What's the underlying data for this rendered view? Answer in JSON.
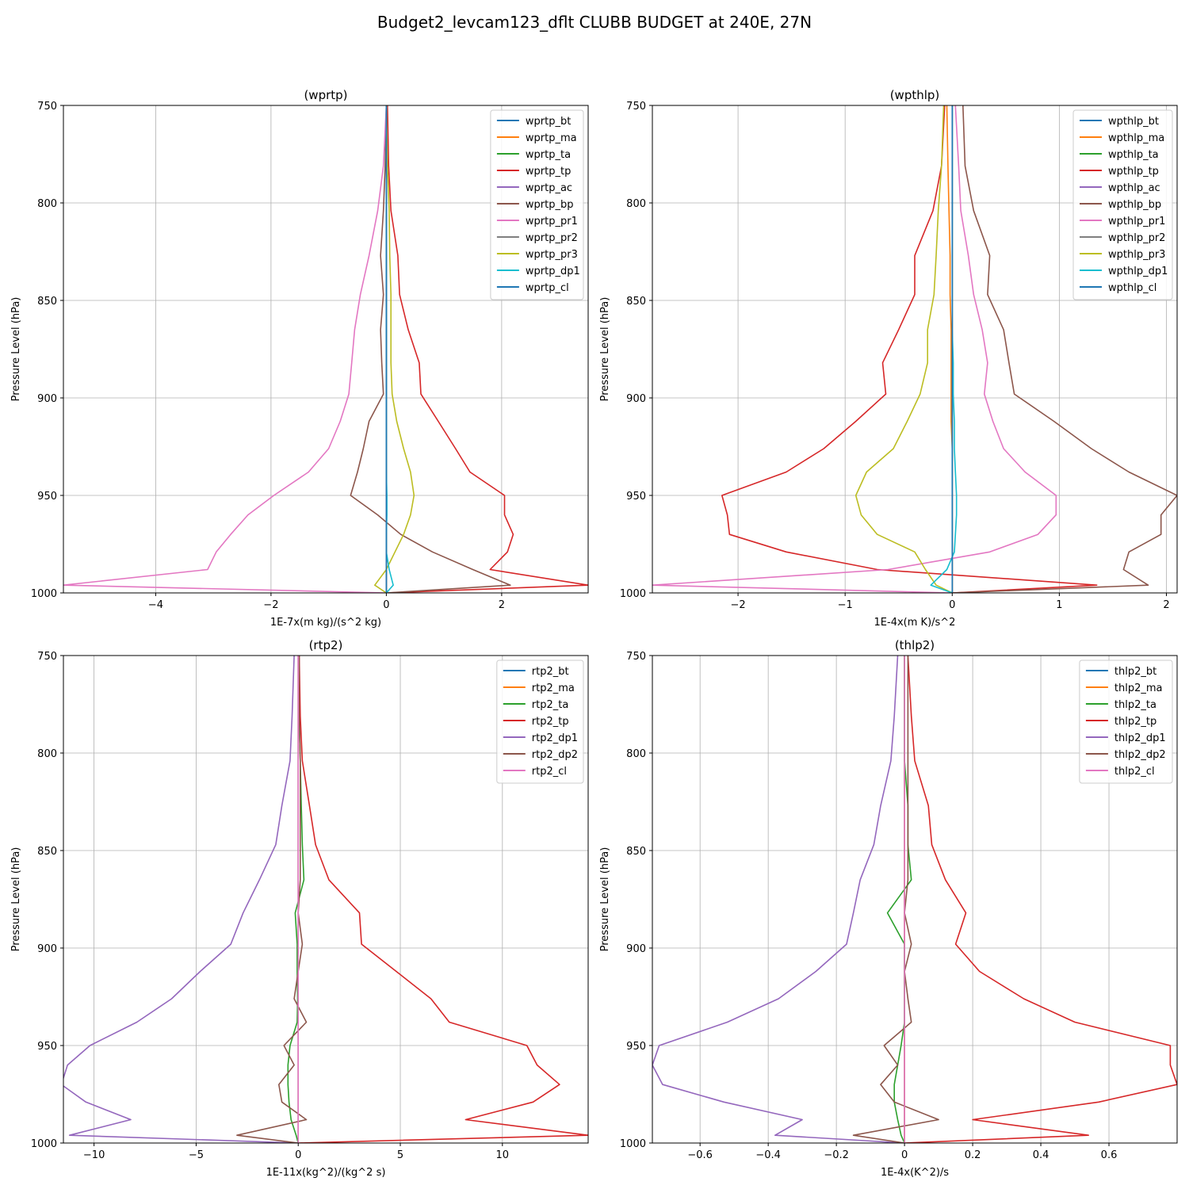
{
  "figure": {
    "title": "Budget2_levcam123_dflt CLUBB BUDGET at 240E, 27N"
  },
  "chart_data": [
    {
      "type": "line",
      "title": "(wprtp)",
      "xlabel": "1E-7x(m kg)/(s^2 kg)",
      "ylabel": "Pressure Level (hPa)",
      "xlim": [
        -5.6,
        3.5
      ],
      "ylim": [
        1000,
        750
      ],
      "xticks": [
        -4,
        -2,
        0,
        2
      ],
      "yticks": [
        750,
        800,
        850,
        900,
        950,
        1000
      ],
      "grid": true,
      "legend_position": "top-right",
      "y": [
        750,
        781,
        804,
        827,
        847,
        865,
        882,
        898,
        912,
        926,
        938,
        950,
        960,
        970,
        979,
        988,
        996,
        1000
      ],
      "series": [
        {
          "name": "wprtp_bt",
          "color": "#1f77b4",
          "values": [
            0,
            0,
            0,
            0,
            0,
            0,
            0,
            0,
            0,
            0,
            0,
            0,
            0,
            0,
            0,
            0,
            0,
            0
          ]
        },
        {
          "name": "wprtp_ma",
          "color": "#ff7f0e",
          "values": [
            0,
            0,
            0,
            0,
            0,
            0,
            0,
            0,
            0,
            0,
            0,
            0,
            0,
            0,
            0,
            0,
            0,
            0
          ]
        },
        {
          "name": "wprtp_ta",
          "color": "#2ca02c",
          "values": [
            0,
            0,
            0,
            0,
            0,
            0,
            0,
            0,
            0,
            0,
            0,
            0,
            0,
            0,
            0,
            0,
            0,
            0
          ]
        },
        {
          "name": "wprtp_tp",
          "color": "#d62728",
          "values": [
            0.02,
            0.04,
            0.08,
            0.2,
            0.23,
            0.38,
            0.57,
            0.6,
            0.9,
            1.2,
            1.45,
            2.05,
            2.05,
            2.2,
            2.1,
            1.8,
            3.5,
            0
          ]
        },
        {
          "name": "wprtp_ac",
          "color": "#9467bd",
          "values": [
            0,
            0,
            0,
            0,
            0,
            0,
            0,
            0,
            0,
            0,
            0,
            0,
            0,
            0,
            0,
            0,
            0,
            0
          ]
        },
        {
          "name": "wprtp_bp",
          "color": "#8c564b",
          "values": [
            0,
            -0.02,
            -0.05,
            -0.1,
            -0.05,
            -0.1,
            -0.08,
            -0.05,
            -0.3,
            -0.4,
            -0.5,
            -0.62,
            -0.15,
            0.25,
            0.8,
            1.5,
            2.15,
            0
          ]
        },
        {
          "name": "wprtp_pr1",
          "color": "#e377c2",
          "values": [
            0,
            -0.05,
            -0.15,
            -0.3,
            -0.45,
            -0.55,
            -0.6,
            -0.65,
            -0.8,
            -1.0,
            -1.35,
            -1.95,
            -2.4,
            -2.7,
            -2.95,
            -3.1,
            -5.6,
            0
          ]
        },
        {
          "name": "wprtp_pr2",
          "color": "#7f7f7f",
          "values": [
            0,
            0,
            0,
            0,
            0,
            0,
            0,
            0,
            0,
            0,
            0,
            0,
            0,
            0,
            0,
            0,
            0,
            0
          ]
        },
        {
          "name": "wprtp_pr3",
          "color": "#bcbd22",
          "values": [
            0,
            0.02,
            0.05,
            0.06,
            0.08,
            0.08,
            0.08,
            0.1,
            0.18,
            0.3,
            0.42,
            0.48,
            0.42,
            0.3,
            0.15,
            0,
            -0.2,
            0
          ]
        },
        {
          "name": "wprtp_dp1",
          "color": "#17becf",
          "values": [
            0,
            0,
            0,
            0,
            0,
            0,
            0,
            0,
            0,
            0,
            0,
            0.01,
            0.01,
            0,
            0,
            0.05,
            0.12,
            0
          ]
        },
        {
          "name": "wprtp_cl",
          "color": "#1f77b4",
          "values": [
            0,
            0,
            0,
            0,
            0,
            0,
            0,
            0,
            0,
            0,
            0,
            0,
            0,
            0,
            0,
            0,
            0,
            0
          ]
        }
      ]
    },
    {
      "type": "line",
      "title": "(wpthlp)",
      "xlabel": "1E-4x(m K)/s^2",
      "ylabel": "Pressure Level (hPa)",
      "xlim": [
        -2.8,
        2.1
      ],
      "ylim": [
        1000,
        750
      ],
      "xticks": [
        -2,
        -1,
        0,
        1,
        2
      ],
      "yticks": [
        750,
        800,
        850,
        900,
        950,
        1000
      ],
      "grid": true,
      "legend_position": "top-right",
      "y": [
        750,
        781,
        804,
        827,
        847,
        865,
        882,
        898,
        912,
        926,
        938,
        950,
        960,
        970,
        979,
        988,
        996,
        1000
      ],
      "series": [
        {
          "name": "wpthlp_bt",
          "color": "#1f77b4",
          "values": [
            0,
            0,
            0,
            0,
            0,
            0,
            0,
            0,
            0,
            0,
            0,
            0,
            0,
            0,
            0,
            0,
            0,
            0
          ]
        },
        {
          "name": "wpthlp_ma",
          "color": "#ff7f0e",
          "values": [
            -0.05,
            -0.04,
            -0.03,
            -0.02,
            -0.02,
            -0.01,
            -0.01,
            -0.01,
            -0.01,
            0,
            0,
            0,
            0,
            0,
            0,
            0,
            0,
            0
          ]
        },
        {
          "name": "wpthlp_ta",
          "color": "#2ca02c",
          "values": [
            0,
            0,
            0,
            0,
            0,
            0,
            0,
            0,
            0,
            0,
            0,
            0,
            0,
            0,
            0,
            0,
            0,
            0
          ]
        },
        {
          "name": "wpthlp_tp",
          "color": "#d62728",
          "values": [
            -0.07,
            -0.1,
            -0.18,
            -0.35,
            -0.35,
            -0.5,
            -0.65,
            -0.62,
            -0.9,
            -1.2,
            -1.55,
            -2.15,
            -2.1,
            -2.08,
            -1.55,
            -0.7,
            1.35,
            0
          ]
        },
        {
          "name": "wpthlp_ac",
          "color": "#9467bd",
          "values": [
            0,
            0,
            0,
            0,
            0,
            0,
            0,
            0,
            0,
            0,
            0,
            0,
            0,
            0,
            0,
            0,
            0,
            0
          ]
        },
        {
          "name": "wpthlp_bp",
          "color": "#8c564b",
          "values": [
            0.1,
            0.12,
            0.2,
            0.35,
            0.33,
            0.48,
            0.53,
            0.58,
            0.95,
            1.3,
            1.65,
            2.1,
            1.95,
            1.95,
            1.65,
            1.6,
            1.83,
            0
          ]
        },
        {
          "name": "wpthlp_pr1",
          "color": "#e377c2",
          "values": [
            0.03,
            0.06,
            0.08,
            0.15,
            0.2,
            0.28,
            0.33,
            0.3,
            0.38,
            0.48,
            0.68,
            0.97,
            0.97,
            0.8,
            0.35,
            -0.6,
            -2.8,
            0
          ]
        },
        {
          "name": "wpthlp_pr2",
          "color": "#7f7f7f",
          "values": [
            0,
            0,
            0,
            0,
            0,
            0,
            0,
            0,
            0,
            0,
            0,
            0,
            0,
            0,
            0,
            0,
            0,
            0
          ]
        },
        {
          "name": "wpthlp_pr3",
          "color": "#bcbd22",
          "values": [
            -0.08,
            -0.1,
            -0.13,
            -0.15,
            -0.17,
            -0.23,
            -0.23,
            -0.3,
            -0.42,
            -0.55,
            -0.8,
            -0.9,
            -0.85,
            -0.7,
            -0.35,
            -0.25,
            -0.15,
            0
          ]
        },
        {
          "name": "wpthlp_dp1",
          "color": "#17becf",
          "values": [
            0,
            0,
            0,
            0,
            0,
            0,
            0.01,
            0.01,
            0.02,
            0.02,
            0.03,
            0.04,
            0.04,
            0.03,
            0.02,
            -0.05,
            -0.2,
            0
          ]
        },
        {
          "name": "wpthlp_cl",
          "color": "#1f77b4",
          "values": [
            0,
            0,
            0,
            0,
            0,
            0,
            0,
            0,
            0,
            0,
            0,
            0,
            0,
            0,
            0,
            0,
            0,
            0
          ]
        }
      ]
    },
    {
      "type": "line",
      "title": "(rtp2)",
      "xlabel": "1E-11x(kg^2)/(kg^2 s)",
      "ylabel": "Pressure Level (hPa)",
      "xlim": [
        -11.5,
        14.2
      ],
      "ylim": [
        1000,
        750
      ],
      "xticks": [
        -10,
        -5,
        0,
        5,
        10
      ],
      "yticks": [
        750,
        800,
        850,
        900,
        950,
        1000
      ],
      "grid": true,
      "legend_position": "top-right",
      "y": [
        750,
        781,
        804,
        827,
        847,
        865,
        882,
        898,
        912,
        926,
        938,
        950,
        960,
        970,
        979,
        988,
        996,
        1000
      ],
      "series": [
        {
          "name": "rtp2_bt",
          "color": "#1f77b4",
          "values": [
            0,
            0,
            0,
            0,
            0,
            0,
            0,
            0,
            0,
            0,
            0,
            0,
            0,
            0,
            0,
            0,
            0,
            0
          ]
        },
        {
          "name": "rtp2_ma",
          "color": "#ff7f0e",
          "values": [
            0,
            0,
            0,
            0,
            0,
            0,
            0,
            0,
            0,
            0,
            0,
            0,
            0,
            0,
            0,
            0,
            0,
            0
          ]
        },
        {
          "name": "rtp2_ta",
          "color": "#2ca02c",
          "values": [
            0.02,
            0.05,
            0.1,
            0.15,
            0.2,
            0.28,
            -0.15,
            -0.05,
            -0.05,
            -0.03,
            -0.05,
            -0.4,
            -0.5,
            -0.5,
            -0.45,
            -0.35,
            -0.1,
            0
          ]
        },
        {
          "name": "rtp2_tp",
          "color": "#d62728",
          "values": [
            0.05,
            0.1,
            0.2,
            0.55,
            0.85,
            1.5,
            3.0,
            3.1,
            4.8,
            6.5,
            7.4,
            11.2,
            11.7,
            12.8,
            11.5,
            8.2,
            14.2,
            0
          ]
        },
        {
          "name": "rtp2_dp1",
          "color": "#9467bd",
          "values": [
            -0.2,
            -0.3,
            -0.4,
            -0.8,
            -1.1,
            -1.9,
            -2.7,
            -3.3,
            -4.8,
            -6.2,
            -7.9,
            -10.2,
            -11.3,
            -11.6,
            -10.4,
            -8.2,
            -11.2,
            0
          ]
        },
        {
          "name": "rtp2_dp2",
          "color": "#8c564b",
          "values": [
            0.05,
            0.05,
            0.1,
            0.1,
            0.1,
            0.1,
            0,
            0.2,
            0,
            -0.2,
            0.4,
            -0.7,
            -0.2,
            -0.95,
            -0.8,
            0.4,
            -3.0,
            0
          ]
        },
        {
          "name": "rtp2_cl",
          "color": "#e377c2",
          "values": [
            0,
            0,
            0,
            0,
            0,
            0,
            0,
            0,
            0,
            0,
            0,
            0,
            0,
            0,
            0,
            0,
            0,
            0
          ]
        }
      ]
    },
    {
      "type": "line",
      "title": "(thlp2)",
      "xlabel": "1E-4x(K^2)/s",
      "ylabel": "Pressure Level (hPa)",
      "xlim": [
        -0.74,
        0.8
      ],
      "ylim": [
        1000,
        750
      ],
      "xticks": [
        -0.6,
        -0.4,
        -0.2,
        0.0,
        0.2,
        0.4,
        0.6
      ],
      "yticks": [
        750,
        800,
        850,
        900,
        950,
        1000
      ],
      "grid": true,
      "legend_position": "top-right",
      "y": [
        750,
        781,
        804,
        827,
        847,
        865,
        882,
        898,
        912,
        926,
        938,
        950,
        960,
        970,
        979,
        988,
        996,
        1000
      ],
      "series": [
        {
          "name": "thlp2_bt",
          "color": "#1f77b4",
          "values": [
            0,
            0,
            0,
            0,
            0,
            0,
            0,
            0,
            0,
            0,
            0,
            0,
            0,
            0,
            0,
            0,
            0,
            0
          ]
        },
        {
          "name": "thlp2_ma",
          "color": "#ff7f0e",
          "values": [
            0,
            0,
            0,
            0,
            0,
            0,
            0,
            0,
            0,
            0,
            0,
            0,
            0,
            0,
            0,
            0,
            0,
            0
          ]
        },
        {
          "name": "thlp2_ta",
          "color": "#2ca02c",
          "values": [
            0,
            0,
            0,
            0.01,
            0.01,
            0.02,
            -0.05,
            0,
            0,
            0,
            0,
            -0.01,
            -0.02,
            -0.03,
            -0.03,
            -0.02,
            -0.01,
            0
          ]
        },
        {
          "name": "thlp2_tp",
          "color": "#d62728",
          "values": [
            0.01,
            0.02,
            0.03,
            0.07,
            0.08,
            0.12,
            0.18,
            0.15,
            0.22,
            0.35,
            0.5,
            0.78,
            0.78,
            0.8,
            0.57,
            0.2,
            0.54,
            0
          ]
        },
        {
          "name": "thlp2_dp1",
          "color": "#9467bd",
          "values": [
            -0.02,
            -0.03,
            -0.04,
            -0.07,
            -0.09,
            -0.13,
            -0.15,
            -0.17,
            -0.26,
            -0.37,
            -0.52,
            -0.72,
            -0.74,
            -0.71,
            -0.53,
            -0.3,
            -0.38,
            0
          ]
        },
        {
          "name": "thlp2_dp2",
          "color": "#8c564b",
          "values": [
            0.01,
            0.01,
            0.01,
            0.01,
            0.01,
            0.01,
            0,
            0.02,
            0,
            0.01,
            0.02,
            -0.06,
            -0.02,
            -0.07,
            -0.03,
            0.1,
            -0.15,
            0
          ]
        },
        {
          "name": "thlp2_cl",
          "color": "#e377c2",
          "values": [
            0,
            0,
            0,
            0,
            0,
            0,
            0,
            0,
            0,
            0,
            0,
            0,
            0,
            0,
            0,
            0,
            0,
            0
          ]
        }
      ]
    }
  ]
}
